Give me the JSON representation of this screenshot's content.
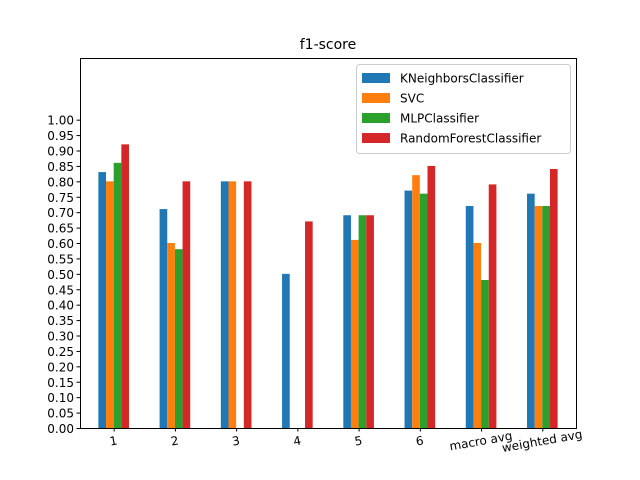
{
  "chart_data": {
    "type": "bar",
    "title": "f1-score",
    "xlabel": "",
    "ylabel": "",
    "categories": [
      "1",
      "2",
      "3",
      "4",
      "5",
      "6",
      "macro avg",
      "weighted avg"
    ],
    "series": [
      {
        "name": "KNeighborsClassifier",
        "color": "#1f77b4",
        "values": [
          0.83,
          0.71,
          0.8,
          0.5,
          0.69,
          0.77,
          0.72,
          0.76
        ]
      },
      {
        "name": "SVC",
        "color": "#ff7f0e",
        "values": [
          0.8,
          0.6,
          0.8,
          0.0,
          0.61,
          0.82,
          0.6,
          0.72
        ]
      },
      {
        "name": "MLPClassifier",
        "color": "#2ca02c",
        "values": [
          0.86,
          0.58,
          0.0,
          0.0,
          0.69,
          0.76,
          0.48,
          0.72
        ]
      },
      {
        "name": "RandomForestClassifier",
        "color": "#d62728",
        "values": [
          0.92,
          0.8,
          0.8,
          0.67,
          0.69,
          0.85,
          0.79,
          0.84
        ]
      }
    ],
    "ylim": [
      0,
      1.2
    ],
    "yticks": [
      "0.00",
      "0.05",
      "0.10",
      "0.15",
      "0.20",
      "0.25",
      "0.30",
      "0.35",
      "0.40",
      "0.45",
      "0.50",
      "0.55",
      "0.60",
      "0.65",
      "0.70",
      "0.75",
      "0.80",
      "0.85",
      "0.90",
      "0.95",
      "1.00"
    ],
    "grid": false,
    "legend_position": "top-right",
    "xtick_rotation": -10
  }
}
